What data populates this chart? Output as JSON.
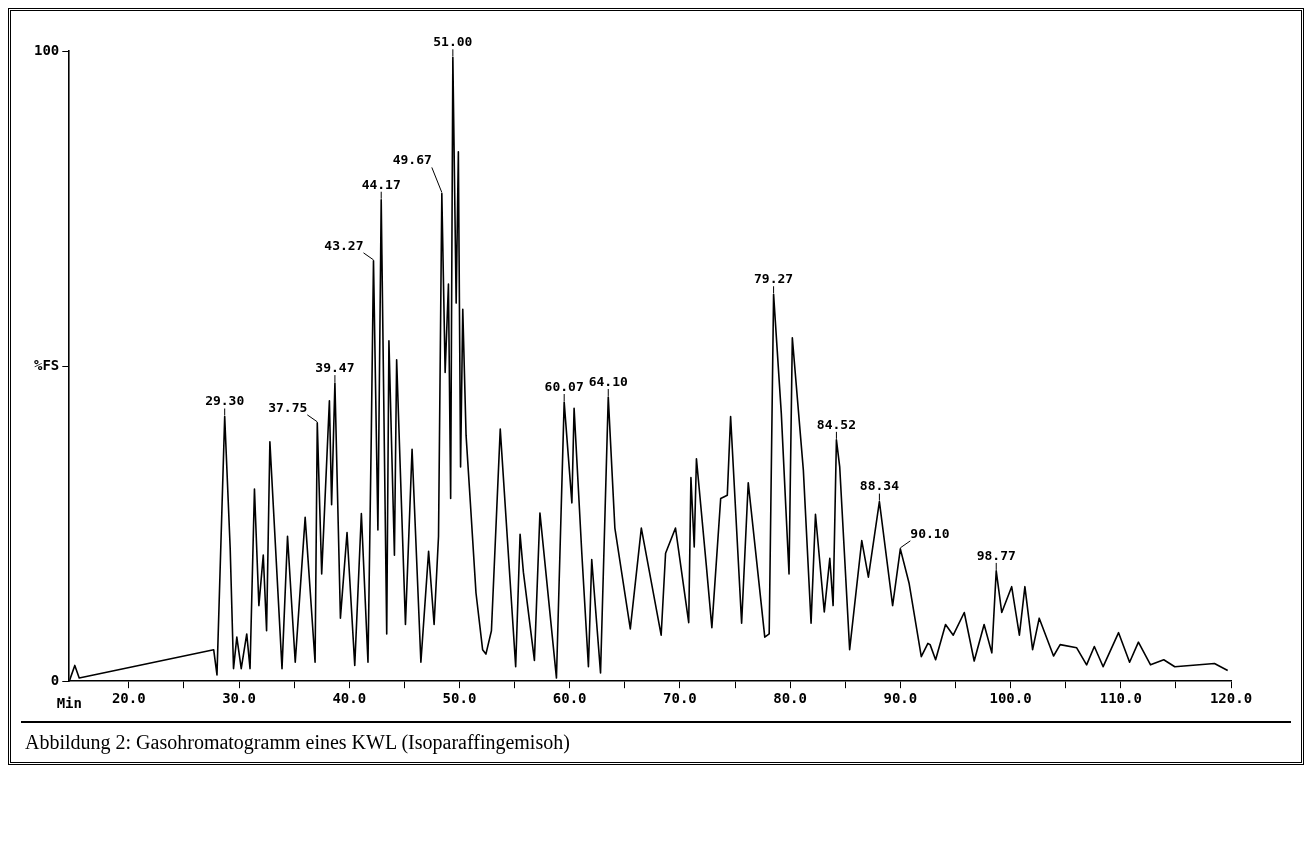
{
  "chart_data": {
    "type": "line",
    "title": "Abbildung 2: Gasohromatogramm eines KWL (Isoparaffingemisoh)",
    "xlabel": "Min",
    "xlim": [
      14.6,
      120
    ],
    "xticks": [
      {
        "value": 20,
        "label": "20.0"
      },
      {
        "value": 25,
        "label": null
      },
      {
        "value": 30,
        "label": "30.0"
      },
      {
        "value": 35,
        "label": null
      },
      {
        "value": 40,
        "label": "40.0"
      },
      {
        "value": 45,
        "label": null
      },
      {
        "value": 50,
        "label": "50.0"
      },
      {
        "value": 55,
        "label": null
      },
      {
        "value": 60,
        "label": "60.0"
      },
      {
        "value": 65,
        "label": null
      },
      {
        "value": 70,
        "label": "70.0"
      },
      {
        "value": 75,
        "label": null
      },
      {
        "value": 80,
        "label": "80.0"
      },
      {
        "value": 85,
        "label": null
      },
      {
        "value": 90,
        "label": "90.0"
      },
      {
        "value": 95,
        "label": null
      },
      {
        "value": 100,
        "label": "100.0"
      },
      {
        "value": 105,
        "label": null
      },
      {
        "value": 110,
        "label": "110.0"
      },
      {
        "value": 115,
        "label": null
      },
      {
        "value": 120,
        "label": "120.0"
      }
    ],
    "ylim": [
      0,
      100
    ],
    "yticks": [
      0,
      {
        "value": 50,
        "label": "%FS"
      },
      100
    ],
    "grid": false,
    "legend": false,
    "marker": "none",
    "line_style": "solid",
    "series": [
      {
        "color": "#000000",
        "x": [
          14.6,
          15.1,
          15.5,
          27.7,
          28.0,
          28.7,
          29.2,
          29.5,
          29.8,
          30.2,
          30.7,
          31.0,
          31.4,
          31.8,
          32.2,
          32.5,
          32.8,
          33.9,
          34.4,
          35.1,
          36.0,
          36.9,
          37.1,
          37.5,
          38.2,
          38.4,
          38.7,
          39.2,
          39.8,
          40.5,
          41.1,
          41.7,
          42.0,
          42.2,
          42.6,
          42.9,
          43.4,
          43.6,
          44.1,
          44.3,
          45.1,
          45.7,
          46.5,
          47.2,
          47.7,
          48.1,
          48.4,
          48.7,
          49.0,
          49.2,
          49.4,
          49.7,
          49.9,
          50.1,
          50.3,
          50.6,
          51.0,
          51.5,
          52.1,
          52.4,
          52.9,
          53.7,
          55.1,
          55.5,
          55.8,
          56.8,
          57.3,
          58.8,
          59.5,
          60.2,
          60.4,
          61.1,
          61.7,
          62.0,
          62.8,
          63.5,
          64.1,
          65.5,
          66.5,
          68.3,
          68.7,
          69.6,
          70.8,
          71.0,
          71.3,
          71.5,
          72.4,
          72.9,
          73.7,
          74.3,
          74.6,
          75.6,
          76.2,
          77.7,
          78.1,
          78.5,
          79.2,
          79.9,
          80.2,
          81.2,
          81.9,
          82.3,
          83.1,
          83.6,
          83.9,
          84.2,
          84.5,
          85.4,
          86.5,
          87.1,
          88.1,
          89.3,
          90.0,
          90.8,
          91.9,
          92.5,
          92.7,
          93.2,
          94.1,
          94.8,
          95.8,
          96.7,
          97.6,
          98.3,
          98.7,
          99.2,
          100.1,
          100.8,
          101.3,
          102.0,
          102.6,
          103.9,
          104.5,
          106.0,
          106.9,
          107.6,
          108.4,
          109.8,
          110.8,
          111.6,
          112.7,
          113.9,
          114.9,
          118.5,
          119.7
        ],
        "values": [
          0,
          2.5,
          0.5,
          5,
          1,
          42,
          21,
          2,
          7,
          2,
          7.5,
          2,
          30.5,
          12,
          20,
          8,
          38,
          2,
          23,
          3,
          26,
          3,
          41,
          17,
          44.5,
          28,
          47.3,
          10,
          23.6,
          2.5,
          26.6,
          3,
          39,
          66.7,
          24,
          76.4,
          7.5,
          54,
          20,
          51,
          9,
          36.8,
          3,
          20.6,
          9,
          23,
          77.4,
          49,
          63,
          29,
          99,
          60,
          84,
          34,
          59,
          39,
          28,
          14,
          5,
          4.3,
          8,
          40,
          2.3,
          23.3,
          17.3,
          3.3,
          26.7,
          0.5,
          44.3,
          28.3,
          43.3,
          20.3,
          2.3,
          19.3,
          1.3,
          45.1,
          24.3,
          8.3,
          24.3,
          7.3,
          20.3,
          24.3,
          9.3,
          32.3,
          21.3,
          35.3,
          18.3,
          8.5,
          29,
          29.5,
          42,
          9.2,
          31.5,
          7,
          7.5,
          61.4,
          42.5,
          17,
          54.5,
          33.5,
          9.2,
          26.5,
          11,
          19.5,
          12,
          38.3,
          34,
          5,
          22.3,
          16.5,
          28.5,
          12,
          21,
          15.5,
          3.9,
          6,
          5.8,
          3.4,
          9,
          7.3,
          10.9,
          3.2,
          9,
          4.5,
          17.5,
          10.9,
          15,
          7.3,
          15,
          5,
          10,
          4,
          5.8,
          5.3,
          2.6,
          5.5,
          2.3,
          7.7,
          3,
          6.2,
          2.6,
          3.4,
          2.3,
          2.8,
          1.7
        ]
      }
    ],
    "annotations": [
      {
        "text": "29.30",
        "x": 28.7,
        "y": 42
      },
      {
        "text": "37.75",
        "x": 37.1,
        "y": 41
      },
      {
        "text": "39.47",
        "x": 38.7,
        "y": 47.3
      },
      {
        "text": "43.27",
        "x": 42.2,
        "y": 66.7
      },
      {
        "text": "44.17",
        "x": 42.9,
        "y": 76.4
      },
      {
        "text": "49.67",
        "x": 48.4,
        "y": 77.4
      },
      {
        "text": "51.00",
        "x": 49.4,
        "y": 99
      },
      {
        "text": "60.07",
        "x": 59.5,
        "y": 44.3
      },
      {
        "text": "64.10",
        "x": 63.5,
        "y": 45.1
      },
      {
        "text": "79.27",
        "x": 78.5,
        "y": 61.4
      },
      {
        "text": "84.52",
        "x": 84.2,
        "y": 38.3
      },
      {
        "text": "88.34",
        "x": 88.1,
        "y": 28.5
      },
      {
        "text": "90.10",
        "x": 90.0,
        "y": 21
      },
      {
        "text": "98.77",
        "x": 98.7,
        "y": 17.5
      }
    ]
  }
}
